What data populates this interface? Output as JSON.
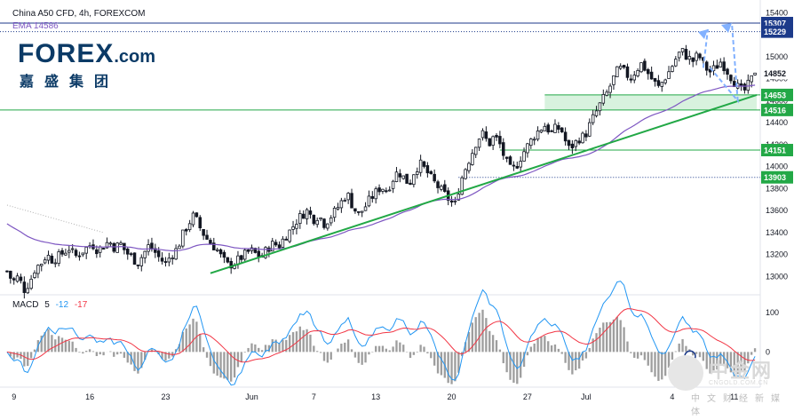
{
  "header": {
    "symbol": "China A50 CFD, 4h, FOREXCOM",
    "ema_label": "EMA",
    "ema_value": "14586"
  },
  "logo": {
    "brand": "FOREX",
    "suffix": ".com",
    "sub": "嘉盛集团"
  },
  "watermark": {
    "main": "中金网",
    "sub": "CNGOLD.COM.CN",
    "sub2": "中文财经新媒体"
  },
  "macd": {
    "label": "MACD",
    "fast": "5",
    "slow": "-12",
    "signal": "-17"
  },
  "colors": {
    "up": "#131722",
    "down": "#131722",
    "ema": "#7e57c2",
    "trend": "#22a846",
    "support": "#22a846",
    "resist": "#1c3a8a",
    "macd": "#2196f3",
    "signal": "#f23645",
    "projection": "#82b1ff",
    "zone": "#c8ecd0"
  },
  "chart_data": [
    {
      "type": "line",
      "title": "China A50 CFD, 4h, FOREXCOM",
      "ylim": [
        12850,
        15420
      ],
      "y_ticks": [
        13000,
        13200,
        13400,
        13600,
        13800,
        14000,
        14200,
        14400,
        14600,
        14800,
        15000,
        15200,
        15400
      ],
      "x_labels": [
        {
          "label": "9",
          "index": 2
        },
        {
          "label": "16",
          "index": 24
        },
        {
          "label": "23",
          "index": 46
        },
        {
          "label": "Jun",
          "index": 71
        },
        {
          "label": "7",
          "index": 89
        },
        {
          "label": "13",
          "index": 107
        },
        {
          "label": "20",
          "index": 129
        },
        {
          "label": "27",
          "index": 151
        },
        {
          "label": "Jul",
          "index": 168
        },
        {
          "label": "4",
          "index": 193
        },
        {
          "label": "11",
          "index": 211
        }
      ],
      "price_close_path": [
        13050,
        12950,
        13000,
        12880,
        12950,
        13080,
        13120,
        13200,
        13150,
        13180,
        13220,
        13260,
        13180,
        13220,
        13260,
        13300,
        13240,
        13280,
        13320,
        13260,
        13300,
        13220,
        13180,
        13120,
        13200,
        13280,
        13230,
        13160,
        13120,
        13200,
        13250,
        13380,
        13480,
        13560,
        13450,
        13360,
        13300,
        13250,
        13160,
        13100,
        13120,
        13160,
        13200,
        13240,
        13200,
        13180,
        13260,
        13300,
        13280,
        13360,
        13420,
        13500,
        13560,
        13600,
        13520,
        13560,
        13480,
        13540,
        13600,
        13680,
        13760,
        13640,
        13560,
        13620,
        13700,
        13760,
        13820,
        13780,
        13880,
        13960,
        13900,
        13840,
        13980,
        14020,
        13960,
        13880,
        13820,
        13760,
        13700,
        13640,
        13860,
        14000,
        14120,
        14250,
        14300,
        14200,
        14280,
        14200,
        14050,
        13960,
        14020,
        14120,
        14200,
        14280,
        14340,
        14380,
        14300,
        14360,
        14320,
        14160,
        14200,
        14260,
        14280,
        14400,
        14500,
        14600,
        14680,
        14800,
        14900,
        14860,
        14800,
        14880,
        14940,
        14860,
        14780,
        14720,
        14800,
        14880,
        14980,
        15060,
        15000,
        14960,
        15020,
        14920,
        14860,
        14900,
        14960,
        14880,
        14800,
        14720,
        14680,
        14760,
        14852
      ],
      "ema_value_end": 14586,
      "levels": [
        {
          "value": 15307,
          "label": "15307",
          "style": "resistance",
          "box_color": "#1c3a8a"
        },
        {
          "value": 15229,
          "label": "15229",
          "style": "dotted",
          "box_color": "#1c3a8a"
        },
        {
          "value": 14852,
          "label": "14852",
          "style": "current",
          "box_color": "#ffffff"
        },
        {
          "value": 14653,
          "label": "14653",
          "style": "support",
          "box_color": "#22a846"
        },
        {
          "value": 14516,
          "label": "14516",
          "style": "support",
          "box_color": "#22a846"
        },
        {
          "value": 14151,
          "label": "14151",
          "style": "support",
          "box_color": "#22a846"
        },
        {
          "value": 13903,
          "label": "13903",
          "style": "dotted",
          "box_color": "#22a846"
        }
      ]
    },
    {
      "type": "line",
      "title": "MACD 5 -12 -17",
      "y_ticks": [
        0,
        100
      ],
      "ylim": [
        -80,
        140
      ]
    }
  ]
}
